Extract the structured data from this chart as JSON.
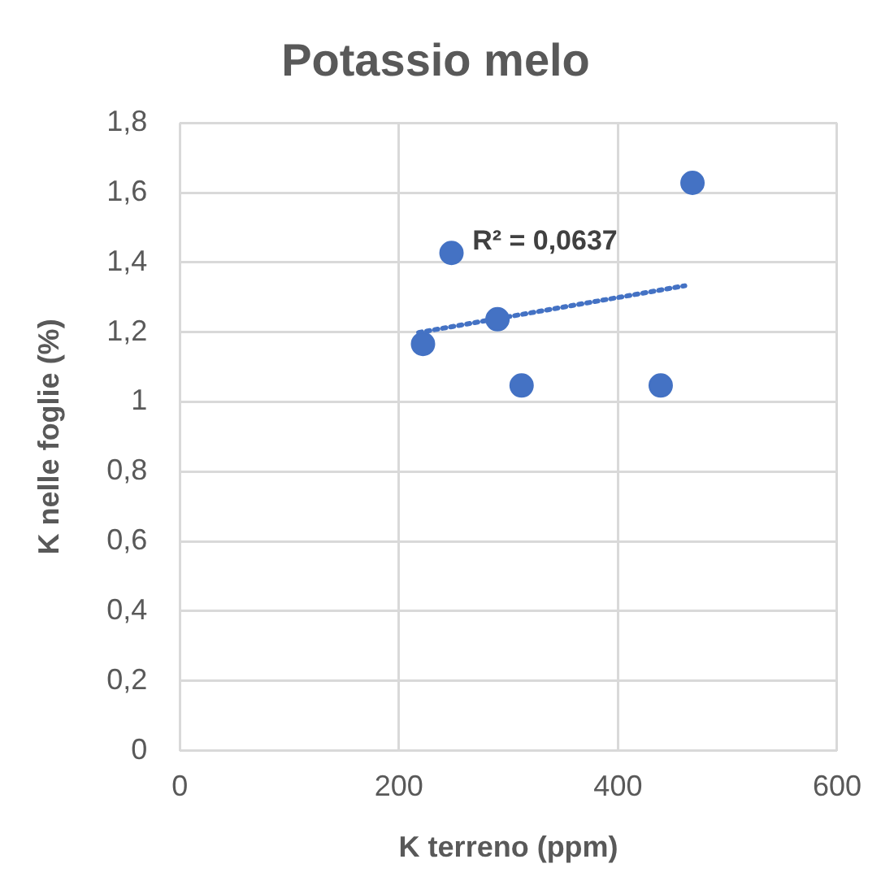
{
  "chart_data": {
    "type": "scatter",
    "title": "Potassio melo",
    "xlabel": "K terreno (ppm)",
    "ylabel": "K nelle foglie (%)",
    "series": [
      {
        "color": "#4472c4",
        "marker": "circle",
        "x": [
          222,
          248,
          290,
          312,
          439,
          468
        ],
        "values": [
          1.166,
          1.427,
          1.237,
          1.047,
          1.047,
          1.628
        ]
      },
      {
        "type": "line",
        "color": "#4472c4",
        "line_style": "dotted",
        "marker": "none",
        "x": [
          218,
          461
        ],
        "values": [
          1.199,
          1.333
        ]
      }
    ],
    "annotations": [
      "R² = 0,0637"
    ],
    "xlim": [
      0,
      600
    ],
    "xticks": [
      0,
      200,
      400,
      600
    ],
    "ylim": [
      0,
      1.8
    ],
    "yticks": [
      {
        "value": 0,
        "label": "0"
      },
      {
        "value": 0.2,
        "label": "0,2"
      },
      {
        "value": 0.4,
        "label": "0,4"
      },
      {
        "value": 0.6,
        "label": "0,6"
      },
      {
        "value": 0.8,
        "label": "0,8"
      },
      {
        "value": 1,
        "label": "1"
      },
      {
        "value": 1.2,
        "label": "1,2"
      },
      {
        "value": 1.4,
        "label": "1,4"
      },
      {
        "value": 1.6,
        "label": "1,6"
      },
      {
        "value": 1.8,
        "label": "1,8"
      }
    ],
    "grid": true,
    "legend": false
  }
}
